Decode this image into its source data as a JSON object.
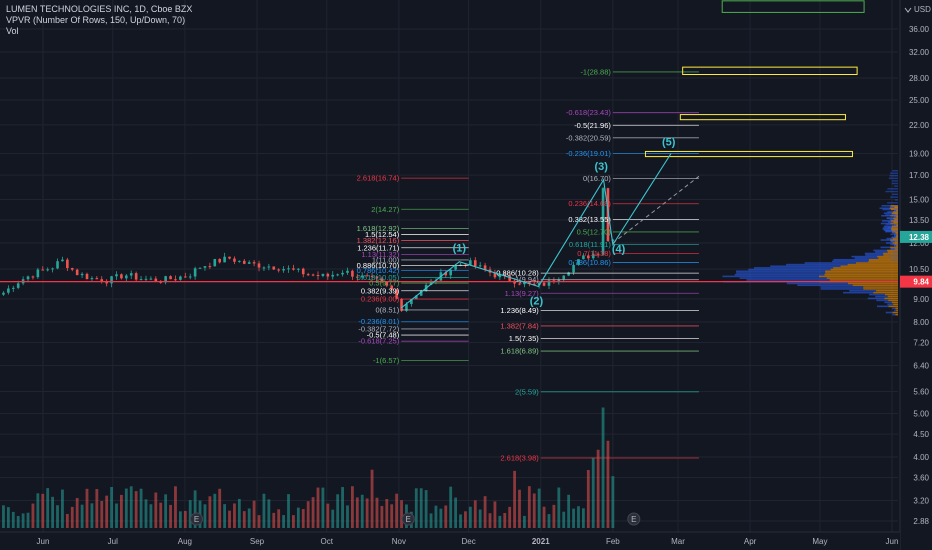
{
  "legend": {
    "symbol": "LUMEN TECHNOLOGIES INC, 1D, Cboe BZX",
    "indicator": "VPVR (Number Of Rows, 150, Up/Down, 70)",
    "volume": "Vol"
  },
  "chart_data": {
    "type": "candlestick",
    "currency": "USD",
    "y_scale": "log",
    "ylim": [
      2.75,
      43
    ],
    "y_ticks": [
      2.88,
      3.2,
      3.6,
      4.0,
      4.5,
      5.0,
      5.6,
      6.4,
      7.2,
      8.0,
      9.0,
      10.5,
      12.0,
      13.5,
      15.0,
      17.0,
      19.0,
      22.0,
      25.0,
      28.0,
      32.0,
      36.0
    ],
    "y_tick_labels": [
      "2.88",
      "3.20",
      "3.60",
      "4.00",
      "4.50",
      "5.00",
      "5.60",
      "6.40",
      "7.20",
      "8.00",
      "9.00",
      "10.50",
      "12.00",
      "13.50",
      "15.00",
      "17.00",
      "19.00",
      "22.00",
      "25.00",
      "28.00",
      "32.00",
      "36.00"
    ],
    "x_ticks": [
      {
        "label": "Jun",
        "date": "2020-06-01"
      },
      {
        "label": "Jul",
        "date": "2020-07-01"
      },
      {
        "label": "Aug",
        "date": "2020-08-01"
      },
      {
        "label": "Sep",
        "date": "2020-09-01"
      },
      {
        "label": "Oct",
        "date": "2020-10-01"
      },
      {
        "label": "Nov",
        "date": "2020-11-01"
      },
      {
        "label": "Dec",
        "date": "2020-12-01"
      },
      {
        "label": "2021",
        "date": "2021-01-01"
      },
      {
        "label": "Feb",
        "date": "2021-02-01"
      },
      {
        "label": "Mar",
        "date": "2021-03-01"
      },
      {
        "label": "Apr",
        "date": "2021-04-01"
      },
      {
        "label": "May",
        "date": "2021-05-01"
      },
      {
        "label": "Jun",
        "date": "2021-06-01"
      }
    ],
    "price_path": [
      [
        "2020-05-15",
        9.3
      ],
      [
        "2020-05-22",
        9.9
      ],
      [
        "2020-05-29",
        10.3
      ],
      [
        "2020-06-05",
        10.6
      ],
      [
        "2020-06-09",
        11.0
      ],
      [
        "2020-06-15",
        10.3
      ],
      [
        "2020-06-22",
        10.0
      ],
      [
        "2020-06-29",
        9.9
      ],
      [
        "2020-07-06",
        10.2
      ],
      [
        "2020-07-13",
        10.0
      ],
      [
        "2020-07-20",
        9.9
      ],
      [
        "2020-07-27",
        10.0
      ],
      [
        "2020-08-03",
        10.2
      ],
      [
        "2020-08-07",
        10.6
      ],
      [
        "2020-08-14",
        10.9
      ],
      [
        "2020-08-20",
        11.1
      ],
      [
        "2020-08-27",
        10.8
      ],
      [
        "2020-09-03",
        10.7
      ],
      [
        "2020-09-10",
        10.6
      ],
      [
        "2020-09-17",
        10.4
      ],
      [
        "2020-09-24",
        10.2
      ],
      [
        "2020-10-01",
        10.1
      ],
      [
        "2020-10-08",
        10.4
      ],
      [
        "2020-10-15",
        10.1
      ],
      [
        "2020-10-22",
        9.9
      ],
      [
        "2020-10-29",
        9.4
      ],
      [
        "2020-11-02",
        8.6
      ],
      [
        "2020-11-09",
        9.3
      ],
      [
        "2020-11-16",
        9.9
      ],
      [
        "2020-11-23",
        10.5
      ],
      [
        "2020-11-30",
        10.9
      ],
      [
        "2020-12-07",
        10.5
      ],
      [
        "2020-12-14",
        10.1
      ],
      [
        "2020-12-21",
        9.9
      ],
      [
        "2020-12-29",
        9.6
      ],
      [
        "2021-01-05",
        9.8
      ],
      [
        "2021-01-12",
        10.4
      ],
      [
        "2021-01-19",
        11.1
      ],
      [
        "2021-01-26",
        11.5
      ],
      [
        "2021-01-28",
        16.6
      ],
      [
        "2021-01-29",
        12.0
      ],
      [
        "2021-02-01",
        12.4
      ]
    ],
    "volume_bars": 125,
    "events": [
      {
        "label": "E",
        "date": "2020-08-06"
      },
      {
        "label": "E",
        "date": "2020-11-05"
      },
      {
        "label": "E",
        "date": "2021-02-10"
      }
    ],
    "current_price": {
      "value": 12.38,
      "label": "12.38",
      "color": "#26a69a"
    },
    "vpvr_poc": {
      "value": 9.84,
      "label": "9.84",
      "color": "#f23645"
    },
    "waves": [
      {
        "label": "(1)",
        "date": "2020-11-27",
        "price": 10.9
      },
      {
        "label": "(2)",
        "date": "2020-12-31",
        "price": 9.6
      },
      {
        "label": "(3)",
        "date": "2021-01-27",
        "price": 16.6
      },
      {
        "label": "(4)",
        "date": "2021-01-31",
        "price": 11.9
      },
      {
        "label": "(5)",
        "date": "2021-02-25",
        "price": 18.8
      }
    ],
    "wave_path": [
      [
        "2020-11-02",
        8.6
      ],
      [
        "2020-11-27",
        10.9
      ],
      [
        "2020-12-31",
        9.6
      ],
      [
        "2021-01-28",
        16.6
      ],
      [
        "2021-02-01",
        11.9
      ],
      [
        "2021-02-26",
        19.0
      ]
    ],
    "projection_line": [
      [
        "2021-02-01",
        12.0
      ],
      [
        "2021-03-10",
        16.9
      ]
    ],
    "fib_sets": [
      {
        "x_range": [
          "2020-11-02",
          "2020-12-01"
        ],
        "label_align": "left-of-start",
        "levels": [
          {
            "label": "2.618(16.74)",
            "value": 16.74,
            "color": "#f23645"
          },
          {
            "label": "2(14.27)",
            "value": 14.27,
            "color": "#4caf50"
          },
          {
            "label": "1.618(12.92)",
            "value": 12.92,
            "color": "#81c784"
          },
          {
            "label": "1.5(12.54)",
            "value": 12.54,
            "color": "#ffffff"
          },
          {
            "label": "1.382(12.16)",
            "value": 12.16,
            "color": "#f7525f"
          },
          {
            "label": "1.236(11.71)",
            "value": 11.71,
            "color": "#ffffff"
          },
          {
            "label": "1.13(11.32)",
            "value": 11.32,
            "color": "#ab47bc"
          },
          {
            "label": "1(11.00)",
            "value": 11.0,
            "color": "#b2b5be"
          },
          {
            "label": "0.886(10.70)",
            "value": 10.7,
            "color": "#ffffff"
          },
          {
            "label": "0.786(10.42)",
            "value": 10.42,
            "color": "#2196f3"
          },
          {
            "label": "0.618(10.05)",
            "value": 10.05,
            "color": "#26a69a"
          },
          {
            "label": "0.5(9.77)",
            "value": 9.77,
            "color": "#4caf50"
          },
          {
            "label": "0.382(9.39)",
            "value": 9.39,
            "color": "#ffffff"
          },
          {
            "label": "0.236(9.00)",
            "value": 9.0,
            "color": "#f23645"
          },
          {
            "label": "0(8.51)",
            "value": 8.51,
            "color": "#b2b5be"
          },
          {
            "label": "-0.236(8.01)",
            "value": 8.01,
            "color": "#2196f3"
          },
          {
            "label": "-0.382(7.72)",
            "value": 7.72,
            "color": "#b2b5be"
          },
          {
            "label": "-0.5(7.48)",
            "value": 7.48,
            "color": "#ffffff"
          },
          {
            "label": "-0.618(7.25)",
            "value": 7.25,
            "color": "#ab47bc"
          },
          {
            "label": "-1(6.57)",
            "value": 6.57,
            "color": "#4caf50"
          }
        ]
      },
      {
        "x_range": [
          "2021-01-01",
          "2021-03-10"
        ],
        "label_align": "left-of-start",
        "levels": [
          {
            "label": "0.886(10.28)",
            "value": 10.28,
            "color": "#ffffff"
          },
          {
            "label": "1(9.94)",
            "value": 9.94,
            "color": "#b2b5be"
          },
          {
            "label": "1.13(9.27)",
            "value": 9.27,
            "color": "#ab47bc"
          },
          {
            "label": "1.236(8.49)",
            "value": 8.49,
            "color": "#ffffff"
          },
          {
            "label": "1.382(7.84)",
            "value": 7.84,
            "color": "#f7525f"
          },
          {
            "label": "1.5(7.35)",
            "value": 7.35,
            "color": "#ffffff"
          },
          {
            "label": "1.618(6.89)",
            "value": 6.89,
            "color": "#81c784"
          },
          {
            "label": "2(5.59)",
            "value": 5.59,
            "color": "#26a69a"
          },
          {
            "label": "2.618(3.98)",
            "value": 3.98,
            "color": "#f23645"
          }
        ]
      },
      {
        "x_range": [
          "2021-02-01",
          "2021-03-10"
        ],
        "label_align": "left-of-start",
        "levels": [
          {
            "label": "-1(28.88)",
            "value": 28.88,
            "color": "#4caf50"
          },
          {
            "label": "-0.618(23.43)",
            "value": 23.43,
            "color": "#ab47bc"
          },
          {
            "label": "-0.5(21.96)",
            "value": 21.96,
            "color": "#ffffff"
          },
          {
            "label": "-0.382(20.59)",
            "value": 20.59,
            "color": "#b2b5be"
          },
          {
            "label": "-0.236(19.01)",
            "value": 19.01,
            "color": "#2196f3"
          },
          {
            "label": "0(16.70)",
            "value": 16.7,
            "color": "#b2b5be"
          },
          {
            "label": "0.236(14.68)",
            "value": 14.68,
            "color": "#f23645"
          },
          {
            "label": "0.382(13.55)",
            "value": 13.55,
            "color": "#ffffff"
          },
          {
            "label": "0.5(12.70)",
            "value": 12.7,
            "color": "#4caf50"
          },
          {
            "label": "0.618(11.91)",
            "value": 11.91,
            "color": "#26a69a"
          },
          {
            "label": "0.7(11.38)",
            "value": 11.38,
            "color": "#f23645"
          },
          {
            "label": "0.786(10.86)",
            "value": 10.86,
            "color": "#2196f3"
          }
        ]
      }
    ],
    "target_boxes": [
      {
        "x_range": [
          "2021-03-20",
          "2021-05-20"
        ],
        "y_range": [
          39.2,
          41.6
        ],
        "color": "#4caf50"
      },
      {
        "x_range": [
          "2021-03-03",
          "2021-05-17"
        ],
        "y_range": [
          28.5,
          29.6
        ],
        "color": "#ffeb3b"
      },
      {
        "x_range": [
          "2021-03-02",
          "2021-05-12"
        ],
        "y_range": [
          22.6,
          23.2
        ],
        "color": "#ffeb3b"
      },
      {
        "x_range": [
          "2021-02-15",
          "2021-05-15"
        ],
        "y_range": [
          18.7,
          19.2
        ],
        "color": "#ffeb3b"
      }
    ],
    "colors": {
      "up": "#26a69a",
      "down": "#ef5350",
      "background": "#131722",
      "grid": "#1f2430"
    }
  }
}
